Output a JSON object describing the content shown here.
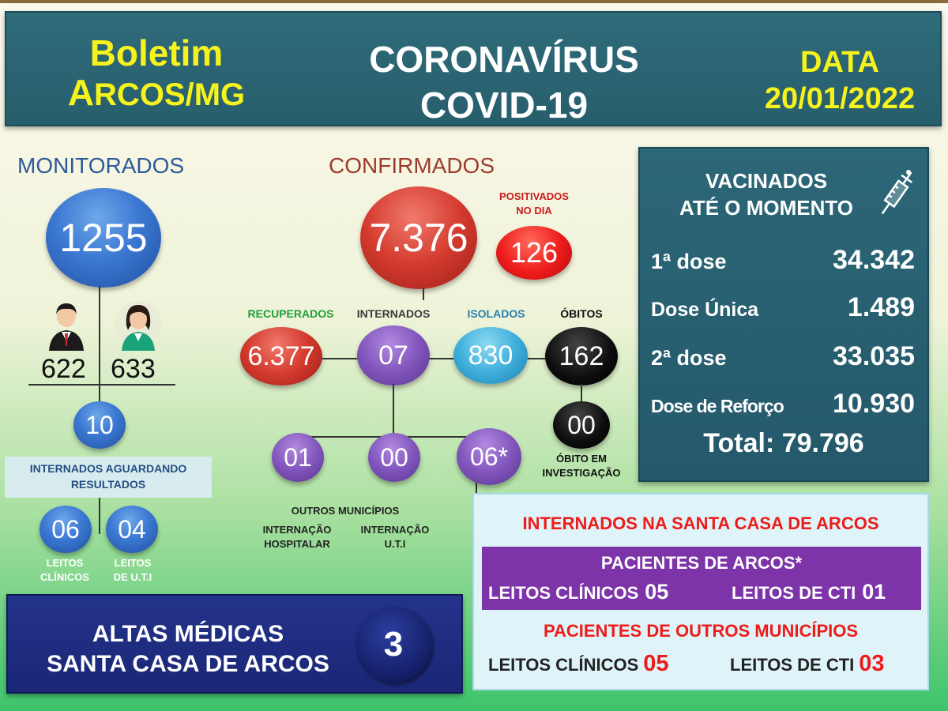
{
  "header": {
    "left_line1": "Boletim",
    "left_line2_big": "A",
    "left_line2_rest": "RCOS/MG",
    "center_line1": "CORONAVÍRUS",
    "center_line2": "COVID-19",
    "right_line1": "DATA",
    "right_line2": "20/01/2022"
  },
  "monitorados": {
    "title": "MONITORADOS",
    "total": "1255",
    "men": "622",
    "women": "633",
    "hospitalized": "10",
    "waiting_label": "INTERNADOS AGUARDANDO RESULTADOS",
    "clinical_beds": "06",
    "icu_beds": "04",
    "clinical_label_1": "LEITOS",
    "clinical_label_2": "CLÍNICOS",
    "icu_label_1": "LEITOS",
    "icu_label_2": "DE U.T.I"
  },
  "confirmados": {
    "title": "CONFIRMADOS",
    "total": "7.376",
    "positive_label_1": "POSITIVADOS",
    "positive_label_2": "NO DIA",
    "positive_today": "126",
    "recovered_label": "RECUPERADOS",
    "recovered": "6.377",
    "hospitalized_label": "INTERNADOS",
    "hospitalized": "07",
    "isolated_label": "ISOLADOS",
    "isolated": "830",
    "deaths_label": "ÓBITOS",
    "deaths": "162",
    "deaths_investigation": "00",
    "deaths_investigation_label_1": "ÓBITO EM",
    "deaths_investigation_label_2": "INVESTIGAÇÃO",
    "sub_1": "01",
    "sub_2": "00",
    "sub_3": "06*",
    "others_label": "OUTROS MUNICÍPIOS",
    "hosp_label_1": "INTERNAÇÃO",
    "hosp_label_2": "HOSPITALAR",
    "uti_label_1": "INTERNAÇÃO",
    "uti_label_2": "U.T.I"
  },
  "vacinados": {
    "title_1": "VACINADOS",
    "title_2": "ATÉ O MOMENTO",
    "dose1_label": "1ª dose",
    "dose1": "34.342",
    "single_label": "Dose Única",
    "single": "1.489",
    "dose2_label": "2ª dose",
    "dose2": "33.035",
    "booster_label": "Dose de Reforço",
    "booster": "10.930",
    "total": "Total: 79.796"
  },
  "santa_casa": {
    "title": "INTERNADOS NA SANTA CASA DE ARCOS",
    "arcos_title": "PACIENTES DE ARCOS*",
    "arcos_clinical_label": "LEITOS CLÍNICOS",
    "arcos_clinical": "05",
    "arcos_icu_label": "LEITOS DE CTI",
    "arcos_icu": "01",
    "others_title": "PACIENTES DE OUTROS MUNICÍPIOS",
    "others_clinical_label": "LEITOS CLÍNICOS",
    "others_clinical": "05",
    "others_icu_label": "LEITOS DE CTI",
    "others_icu": "03"
  },
  "altas": {
    "line1": "ALTAS MÉDICAS",
    "line2": "SANTA CASA DE ARCOS",
    "value": "3"
  },
  "icons": [
    "man-avatar-icon",
    "woman-avatar-icon",
    "syringe-icon"
  ],
  "colors": {
    "header_bg": "#2f6b7a",
    "header_accent": "#f5f21c",
    "monitor_title": "#2d5a9a",
    "confirm_title": "#9e3a2c",
    "recovered_label": "#1e9e3a",
    "isolated_label": "#2a7fb0",
    "alert_red": "#ee1b1b",
    "purple_bar": "#7c34a8",
    "altas_bg": "#23338a"
  }
}
